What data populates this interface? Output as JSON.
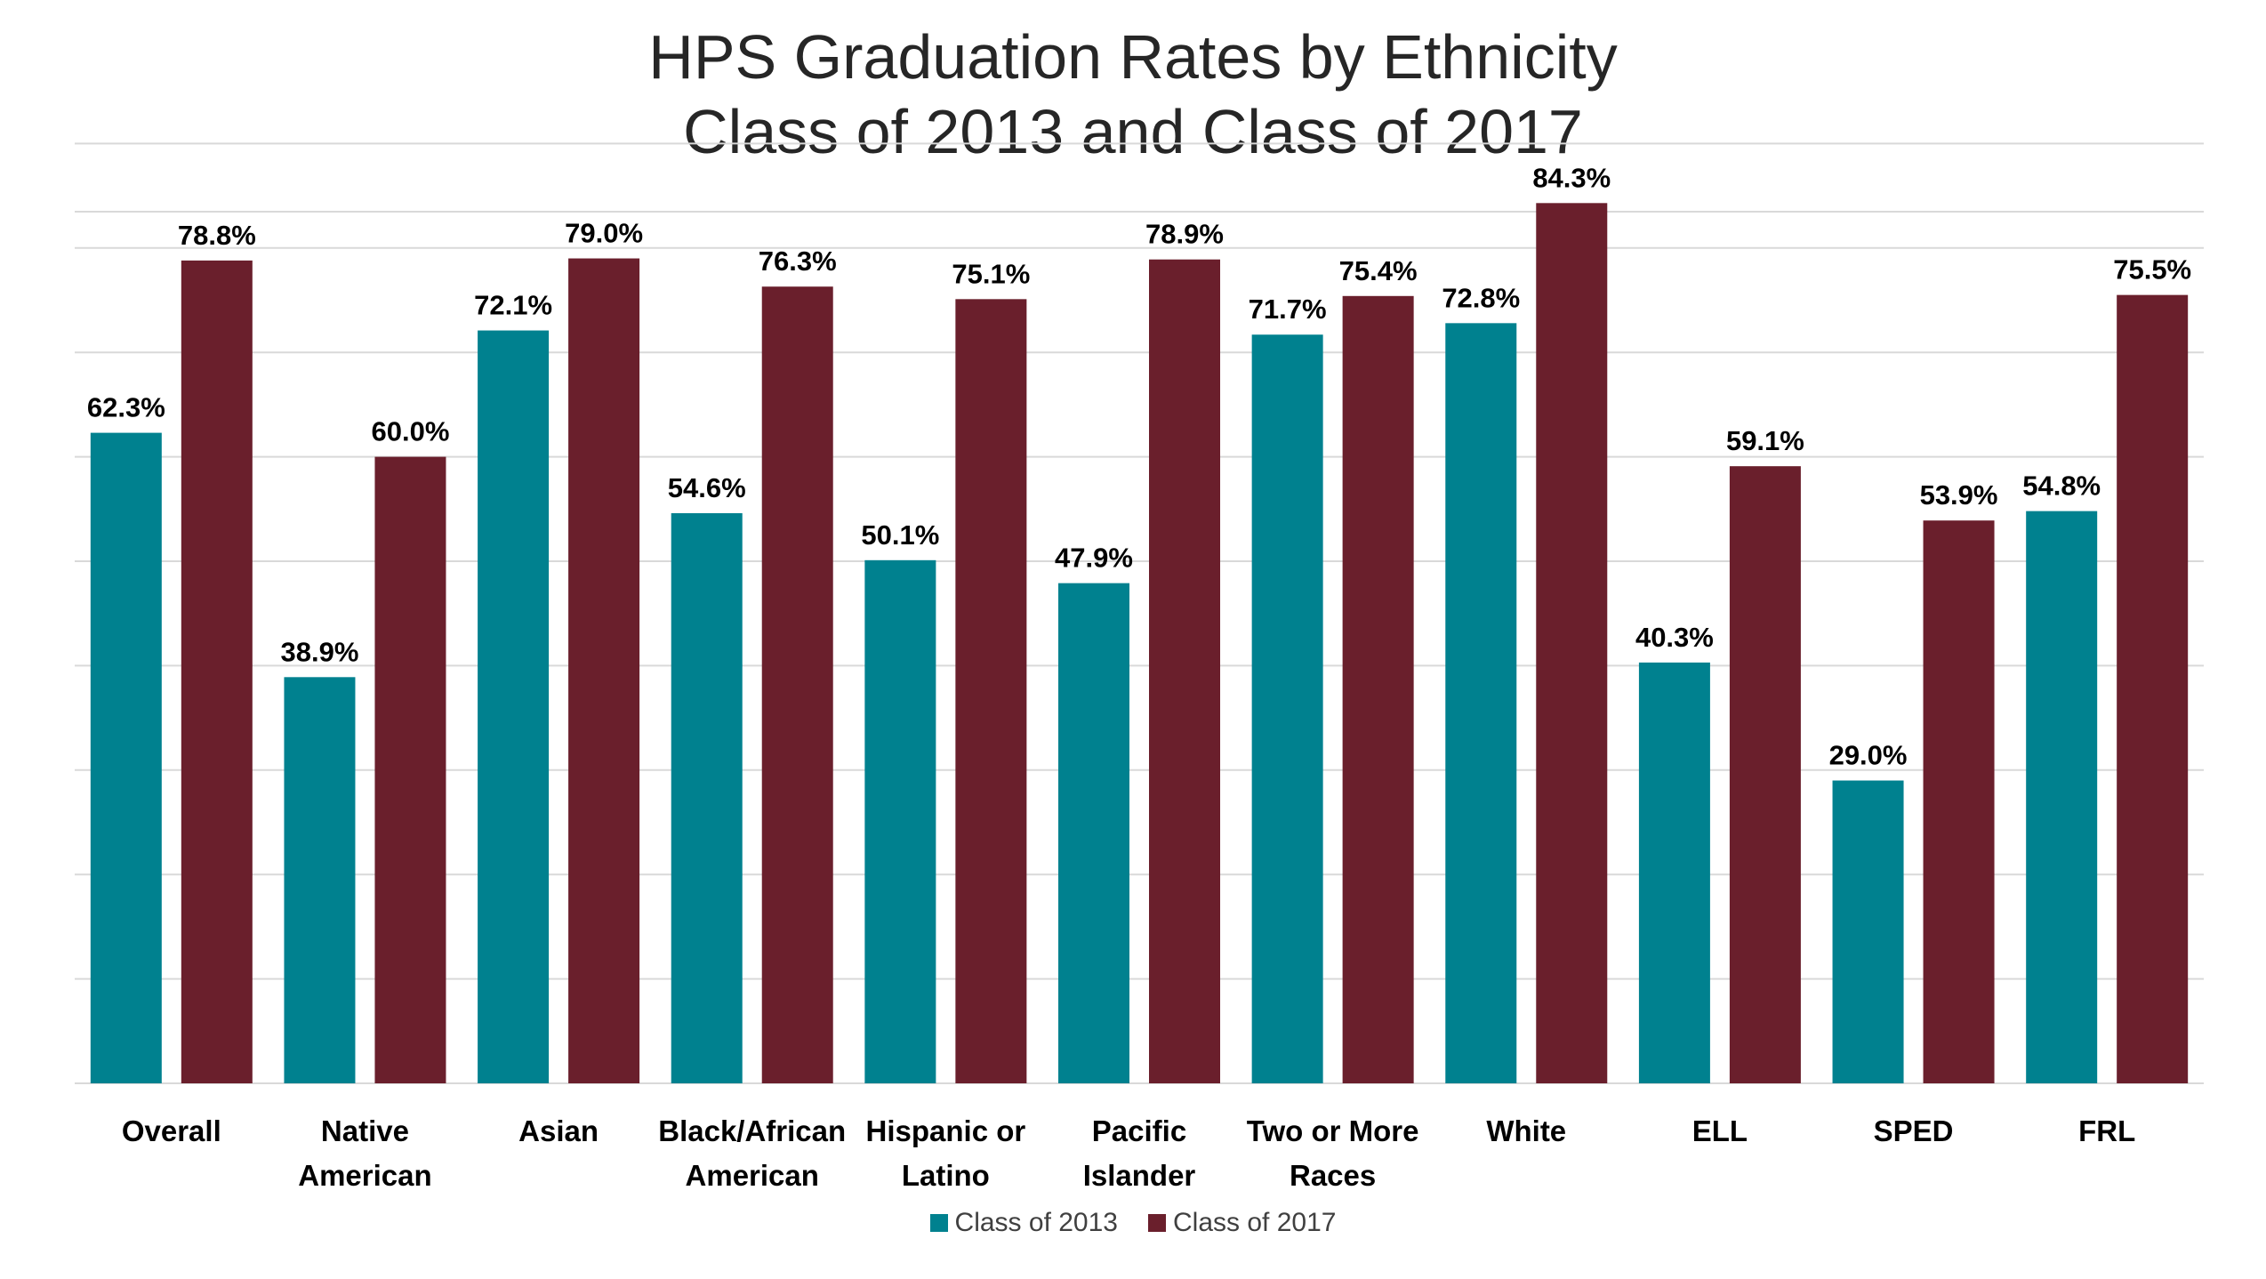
{
  "chart_data": {
    "type": "bar",
    "title": [
      "HPS Graduation Rates by Ethnicity",
      "Class of 2013 and Class of 2017"
    ],
    "xlabel": "",
    "ylabel": "",
    "ylim": [
      0,
      90
    ],
    "gridlines": true,
    "legend_position": "bottom",
    "categories": [
      [
        "Overall"
      ],
      [
        "Native",
        "American"
      ],
      [
        "Asian"
      ],
      [
        "Black/African",
        "American"
      ],
      [
        "Hispanic or",
        "Latino"
      ],
      [
        "Pacific",
        "Islander"
      ],
      [
        "Two or More",
        "Races"
      ],
      [
        "White"
      ],
      [
        "ELL"
      ],
      [
        "SPED"
      ],
      [
        "FRL"
      ]
    ],
    "series": [
      {
        "name": "Class of 2013",
        "color": "#00818F",
        "values": [
          62.3,
          38.9,
          72.1,
          54.6,
          50.1,
          47.9,
          71.7,
          72.8,
          40.3,
          29.0,
          54.8
        ],
        "labels": [
          "62.3%",
          "38.9%",
          "72.1%",
          "54.6%",
          "50.1%",
          "47.9%",
          "71.7%",
          "72.8%",
          "40.3%",
          "29.0%",
          "54.8%"
        ]
      },
      {
        "name": "Class of 2017",
        "color": "#6A1F2C",
        "values": [
          78.8,
          60.0,
          79.0,
          76.3,
          75.1,
          78.9,
          75.4,
          84.3,
          59.1,
          53.9,
          75.5
        ],
        "labels": [
          "78.8%",
          "60.0%",
          "79.0%",
          "76.3%",
          "75.1%",
          "78.9%",
          "75.4%",
          "84.3%",
          "59.1%",
          "53.9%",
          "75.5%"
        ]
      }
    ]
  },
  "colors": {
    "gridline": "#D9D9D9",
    "label_text": "#000000"
  }
}
